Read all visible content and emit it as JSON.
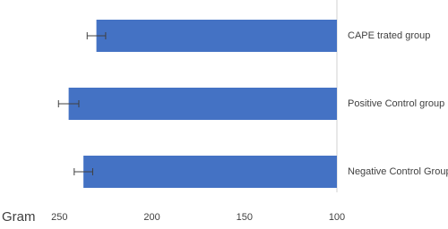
{
  "chart_data": {
    "type": "bar",
    "orientation": "horizontal",
    "x_label": "Gram",
    "categories": [
      "CAPE trated group",
      "Positive Control group",
      "Negative Control Group"
    ],
    "values": [
      230,
      245,
      237
    ],
    "errors": [
      5,
      5.5,
      5
    ],
    "color": "#4472c4",
    "xlim": [
      270,
      100
    ],
    "xticks": [
      250,
      200,
      150,
      100
    ],
    "grid": false
  }
}
